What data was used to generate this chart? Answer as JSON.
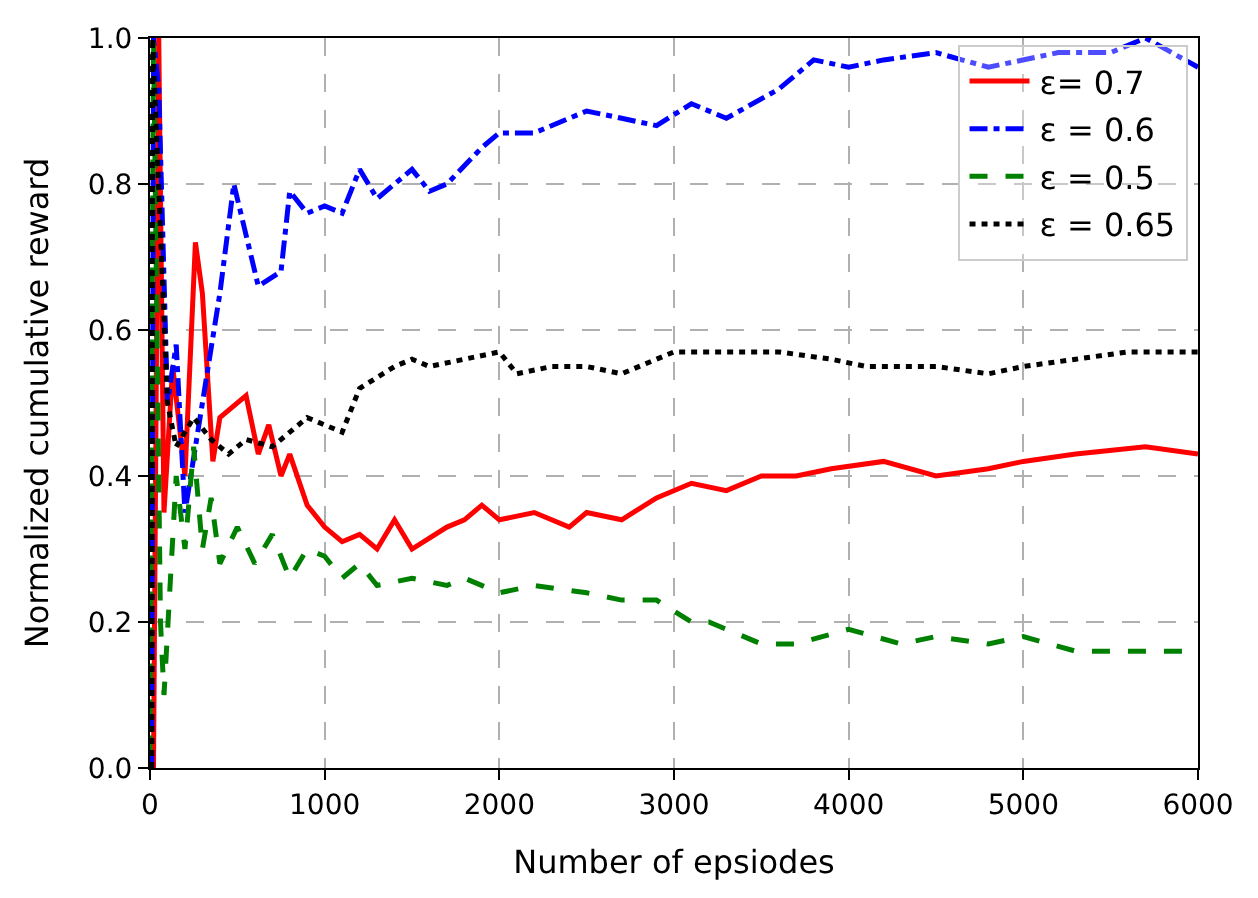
{
  "chart_data": {
    "type": "line",
    "xlabel": "Number of epsiodes",
    "ylabel": "Normalized cumulative reward",
    "xlim": [
      0,
      6000
    ],
    "ylim": [
      0,
      1.0
    ],
    "xticks": [
      0,
      1000,
      2000,
      3000,
      4000,
      5000,
      6000
    ],
    "yticks": [
      {
        "value": 0,
        "label": "0.0"
      },
      0.2,
      0.4,
      0.6,
      0.8,
      {
        "value": 1.0,
        "label": "1.0"
      }
    ],
    "grid": true,
    "legend": "top right",
    "marker": "none",
    "series": [
      {
        "name": "ε= 0.7",
        "color": "#ff0000",
        "line_style": "solid",
        "x": [
          20,
          50,
          80,
          130,
          200,
          260,
          300,
          360,
          400,
          550,
          620,
          680,
          750,
          800,
          900,
          1000,
          1100,
          1200,
          1300,
          1400,
          1500,
          1700,
          1800,
          1900,
          2000,
          2200,
          2400,
          2500,
          2700,
          2900,
          3100,
          3300,
          3500,
          3700,
          3900,
          4200,
          4500,
          4800,
          5000,
          5300,
          5700,
          6000
        ],
        "values": [
          0,
          1.0,
          0.35,
          0.55,
          0.4,
          0.72,
          0.65,
          0.42,
          0.48,
          0.51,
          0.43,
          0.47,
          0.4,
          0.43,
          0.36,
          0.33,
          0.31,
          0.32,
          0.3,
          0.34,
          0.3,
          0.33,
          0.34,
          0.36,
          0.34,
          0.35,
          0.33,
          0.35,
          0.34,
          0.37,
          0.39,
          0.38,
          0.4,
          0.4,
          0.41,
          0.42,
          0.4,
          0.41,
          0.42,
          0.43,
          0.44,
          0.43
        ]
      },
      {
        "name": "ε = 0.6",
        "color": "#0000ff",
        "line_style": "dashdot",
        "x": [
          10,
          20,
          50,
          100,
          150,
          200,
          300,
          400,
          480,
          560,
          620,
          750,
          800,
          900,
          1000,
          1100,
          1200,
          1300,
          1500,
          1600,
          1700,
          1900,
          2000,
          2200,
          2500,
          2700,
          2900,
          3100,
          3300,
          3600,
          3800,
          4000,
          4200,
          4500,
          4800,
          5200,
          5500,
          5700,
          6000
        ],
        "values": [
          0,
          1.0,
          0.93,
          0.5,
          0.58,
          0.35,
          0.5,
          0.65,
          0.8,
          0.72,
          0.66,
          0.68,
          0.79,
          0.76,
          0.77,
          0.76,
          0.82,
          0.78,
          0.82,
          0.79,
          0.8,
          0.85,
          0.87,
          0.87,
          0.9,
          0.89,
          0.88,
          0.91,
          0.89,
          0.93,
          0.97,
          0.96,
          0.97,
          0.98,
          0.96,
          0.98,
          0.98,
          1.0,
          0.96
        ]
      },
      {
        "name": "ε = 0.5",
        "color": "#008000",
        "line_style": "dashed",
        "x": [
          0,
          20,
          60,
          80,
          150,
          200,
          250,
          300,
          350,
          400,
          500,
          600,
          700,
          800,
          900,
          1000,
          1100,
          1200,
          1300,
          1500,
          1700,
          1800,
          2000,
          2200,
          2500,
          2700,
          2900,
          3100,
          3200,
          3500,
          3700,
          4000,
          4300,
          4500,
          4800,
          5000,
          5300,
          5600,
          6000
        ],
        "values": [
          0.02,
          1.0,
          0.2,
          0.1,
          0.4,
          0.3,
          0.44,
          0.3,
          0.37,
          0.28,
          0.33,
          0.28,
          0.32,
          0.26,
          0.3,
          0.29,
          0.26,
          0.28,
          0.25,
          0.26,
          0.25,
          0.26,
          0.24,
          0.25,
          0.24,
          0.23,
          0.23,
          0.2,
          0.2,
          0.17,
          0.17,
          0.19,
          0.17,
          0.18,
          0.17,
          0.18,
          0.16,
          0.16,
          0.16
        ]
      },
      {
        "name": "ε = 0.65",
        "color": "#000000",
        "line_style": "dotted",
        "x": [
          10,
          15,
          100,
          150,
          250,
          350,
          450,
          550,
          700,
          800,
          900,
          1000,
          1100,
          1200,
          1400,
          1500,
          1600,
          1800,
          2000,
          2100,
          2300,
          2500,
          2700,
          3000,
          3300,
          3600,
          3900,
          4100,
          4500,
          4800,
          5000,
          5300,
          5600,
          6000
        ],
        "values": [
          0,
          1.0,
          0.5,
          0.44,
          0.48,
          0.45,
          0.43,
          0.45,
          0.44,
          0.46,
          0.48,
          0.47,
          0.46,
          0.52,
          0.55,
          0.56,
          0.55,
          0.56,
          0.57,
          0.54,
          0.55,
          0.55,
          0.54,
          0.57,
          0.57,
          0.57,
          0.56,
          0.55,
          0.55,
          0.54,
          0.55,
          0.56,
          0.57,
          0.57
        ]
      }
    ]
  }
}
